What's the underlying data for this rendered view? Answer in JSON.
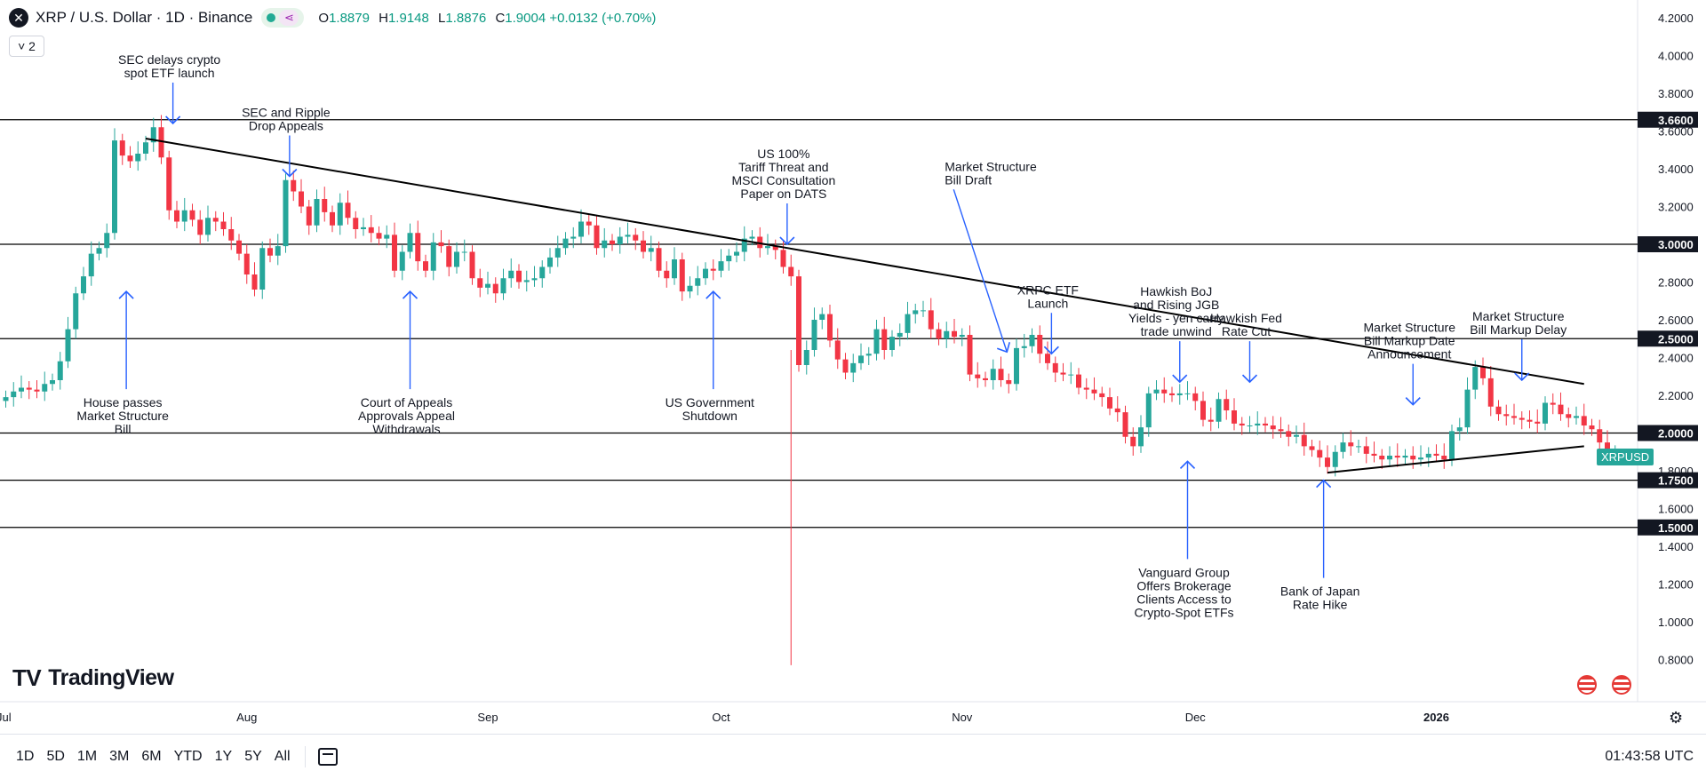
{
  "header": {
    "symbol_title": "XRP / U.S. Dollar · 1D · Binance",
    "ohlc": [
      {
        "k": "O",
        "v": "1.8879"
      },
      {
        "k": "H",
        "v": "1.9148"
      },
      {
        "k": "L",
        "v": "1.8876"
      },
      {
        "k": "C",
        "v": "1.9004"
      }
    ],
    "change": "+0.0132 (+0.70%)",
    "collapse_label": "˅ 2"
  },
  "branding": {
    "logo_mark": "TV",
    "logo_text": "TradingView"
  },
  "symbol_badge": "XRPUSD",
  "bottom": {
    "ranges": [
      "1D",
      "5D",
      "1M",
      "3M",
      "6M",
      "YTD",
      "1Y",
      "5Y",
      "All"
    ],
    "clock": "01:43:58 UTC"
  },
  "colors": {
    "up": "#089981",
    "up_fill": "#26a69a",
    "down": "#f23645",
    "arrow": "#2962ff",
    "line": "#000000"
  },
  "chart_data": {
    "type": "candlestick",
    "title": "XRP / U.S. Dollar · 1D · Binance",
    "ylim": [
      0.7,
      4.3
    ],
    "y_ticks": [
      "4.2000",
      "4.0000",
      "3.8000",
      "3.6000",
      "3.4000",
      "3.2000",
      "3.0000",
      "2.8000",
      "2.6000",
      "2.4000",
      "2.2000",
      "2.0000",
      "1.8000",
      "1.6000",
      "1.4000",
      "1.2000",
      "1.0000",
      "0.8000"
    ],
    "x_labels": [
      {
        "label": "Jul",
        "day": 0
      },
      {
        "label": "Aug",
        "day": 31
      },
      {
        "label": "Sep",
        "day": 62
      },
      {
        "label": "Oct",
        "day": 92
      },
      {
        "label": "Nov",
        "day": 123
      },
      {
        "label": "Dec",
        "day": 153
      },
      {
        "label": "2026",
        "day": 184
      }
    ],
    "horizontal_levels": [
      "3.6600",
      "3.0000",
      "2.5000",
      "2.0000",
      "1.7500",
      "1.5000"
    ],
    "trendlines": [
      {
        "from": [
          "2025-07-19",
          3.56
        ],
        "to": [
          "2026-01-20",
          2.26
        ]
      },
      {
        "from": [
          "2025-12-18",
          1.79
        ],
        "to": [
          "2026-01-20",
          1.93
        ]
      }
    ],
    "annotations": [
      {
        "text": [
          "SEC delays crypto",
          "spot ETF launch"
        ],
        "day": 21.5,
        "dir": "down",
        "tip": 3.64
      },
      {
        "text": [
          "SEC and Ripple",
          "Drop Appeals"
        ],
        "day": 36.5,
        "dir": "down",
        "tip": 3.36
      },
      {
        "text": [
          "US 100%",
          "Tariff Threat and",
          "MSCI Consultation",
          "Paper on DATS"
        ],
        "day": 100.5,
        "dir": "down",
        "tip": 3.0
      },
      {
        "text": [
          "Market Structure",
          "Bill Draft"
        ],
        "day": 129,
        "dir": "diag",
        "tip": 2.42
      },
      {
        "text": [
          "XRPC ETF",
          "Launch"
        ],
        "day": 134.5,
        "dir": "down",
        "tip": 2.42
      },
      {
        "text": [
          "Hawkish BoJ",
          "and Rising JGB",
          "Yields - yen carry",
          "trade unwind"
        ],
        "day": 151,
        "dir": "down",
        "tip": 2.27
      },
      {
        "text": [
          "Hawkish Fed",
          "Rate Cut"
        ],
        "day": 160,
        "dir": "down",
        "tip": 2.27
      },
      {
        "text": [
          "Market Structure",
          "Bill Markup Date",
          "Announcement"
        ],
        "day": 181,
        "dir": "down",
        "tip": 2.15
      },
      {
        "text": [
          "Market Structure",
          "Bill Markup Delay"
        ],
        "day": 195,
        "dir": "down",
        "tip": 2.28
      },
      {
        "text": [
          "House passes",
          "Market Structure",
          "Bill"
        ],
        "day": 15.5,
        "dir": "up",
        "tip": 2.75
      },
      {
        "text": [
          "Court of Appeals",
          "Approvals Appeal",
          "Withdrawals"
        ],
        "day": 52,
        "dir": "up",
        "tip": 2.75
      },
      {
        "text": [
          "US Government",
          "Shutdown"
        ],
        "day": 91,
        "dir": "up",
        "tip": 2.75
      },
      {
        "text": [
          "Vanguard Group",
          "Offers Brokerage",
          "Clients Access to",
          "Crypto-Spot ETFs"
        ],
        "day": 152,
        "dir": "up",
        "tip": 1.85
      },
      {
        "text": [
          "Bank of Japan",
          "Rate Hike"
        ],
        "day": 169.5,
        "dir": "up",
        "tip": 1.75
      }
    ],
    "closes": [
      2.19,
      2.22,
      2.24,
      2.23,
      2.22,
      2.26,
      2.28,
      2.38,
      2.55,
      2.74,
      2.83,
      2.95,
      2.98,
      3.06,
      3.55,
      3.47,
      3.44,
      3.48,
      3.54,
      3.62,
      3.46,
      3.18,
      3.12,
      3.18,
      3.13,
      3.05,
      3.14,
      3.12,
      3.08,
      3.02,
      2.95,
      2.84,
      2.76,
      2.98,
      2.94,
      2.99,
      3.34,
      3.28,
      3.2,
      3.1,
      3.24,
      3.17,
      3.1,
      3.22,
      3.14,
      3.08,
      3.09,
      3.06,
      3.03,
      3.05,
      2.86,
      2.96,
      3.06,
      2.91,
      2.86,
      3.01,
      2.99,
      2.88,
      2.96,
      2.96,
      2.82,
      2.77,
      2.79,
      2.74,
      2.82,
      2.86,
      2.8,
      2.81,
      2.82,
      2.88,
      2.93,
      2.98,
      3.03,
      3.04,
      3.12,
      3.1,
      2.98,
      3.02,
      3.0,
      3.04,
      3.05,
      3.02,
      2.96,
      2.98,
      2.86,
      2.82,
      2.92,
      2.75,
      2.78,
      2.82,
      2.87,
      2.86,
      2.91,
      2.94,
      2.96,
      3.03,
      3.04,
      2.98,
      2.99,
      2.97,
      2.88,
      2.83,
      2.36,
      2.44,
      2.6,
      2.63,
      2.49,
      2.39,
      2.32,
      2.37,
      2.41,
      2.42,
      2.55,
      2.44,
      2.51,
      2.53,
      2.63,
      2.65,
      2.65,
      2.55,
      2.5,
      2.54,
      2.51,
      2.52,
      2.31,
      2.29,
      2.28,
      2.34,
      2.28,
      2.26,
      2.45,
      2.46,
      2.52,
      2.42,
      2.37,
      2.32,
      2.31,
      2.31,
      2.24,
      2.23,
      2.21,
      2.19,
      2.13,
      2.11,
      1.98,
      1.93,
      2.03,
      2.21,
      2.23,
      2.21,
      2.2,
      2.21,
      2.21,
      2.17,
      2.07,
      2.06,
      2.18,
      2.12,
      2.05,
      2.04,
      2.04,
      2.05,
      2.04,
      2.02,
      2.01,
      1.98,
      1.99,
      1.93,
      1.91,
      1.87,
      1.82,
      1.9,
      1.95,
      1.93,
      1.93,
      1.89,
      1.88,
      1.86,
      1.88,
      1.87,
      1.88,
      1.86,
      1.87,
      1.89,
      1.88,
      1.86,
      2.01,
      2.03,
      2.23,
      2.35,
      2.29,
      2.14,
      2.1,
      2.09,
      2.08,
      2.07,
      2.06,
      2.05,
      2.16,
      2.15,
      2.1,
      2.08,
      2.09,
      2.04,
      2.02,
      1.95,
      1.89,
      1.9
    ]
  }
}
